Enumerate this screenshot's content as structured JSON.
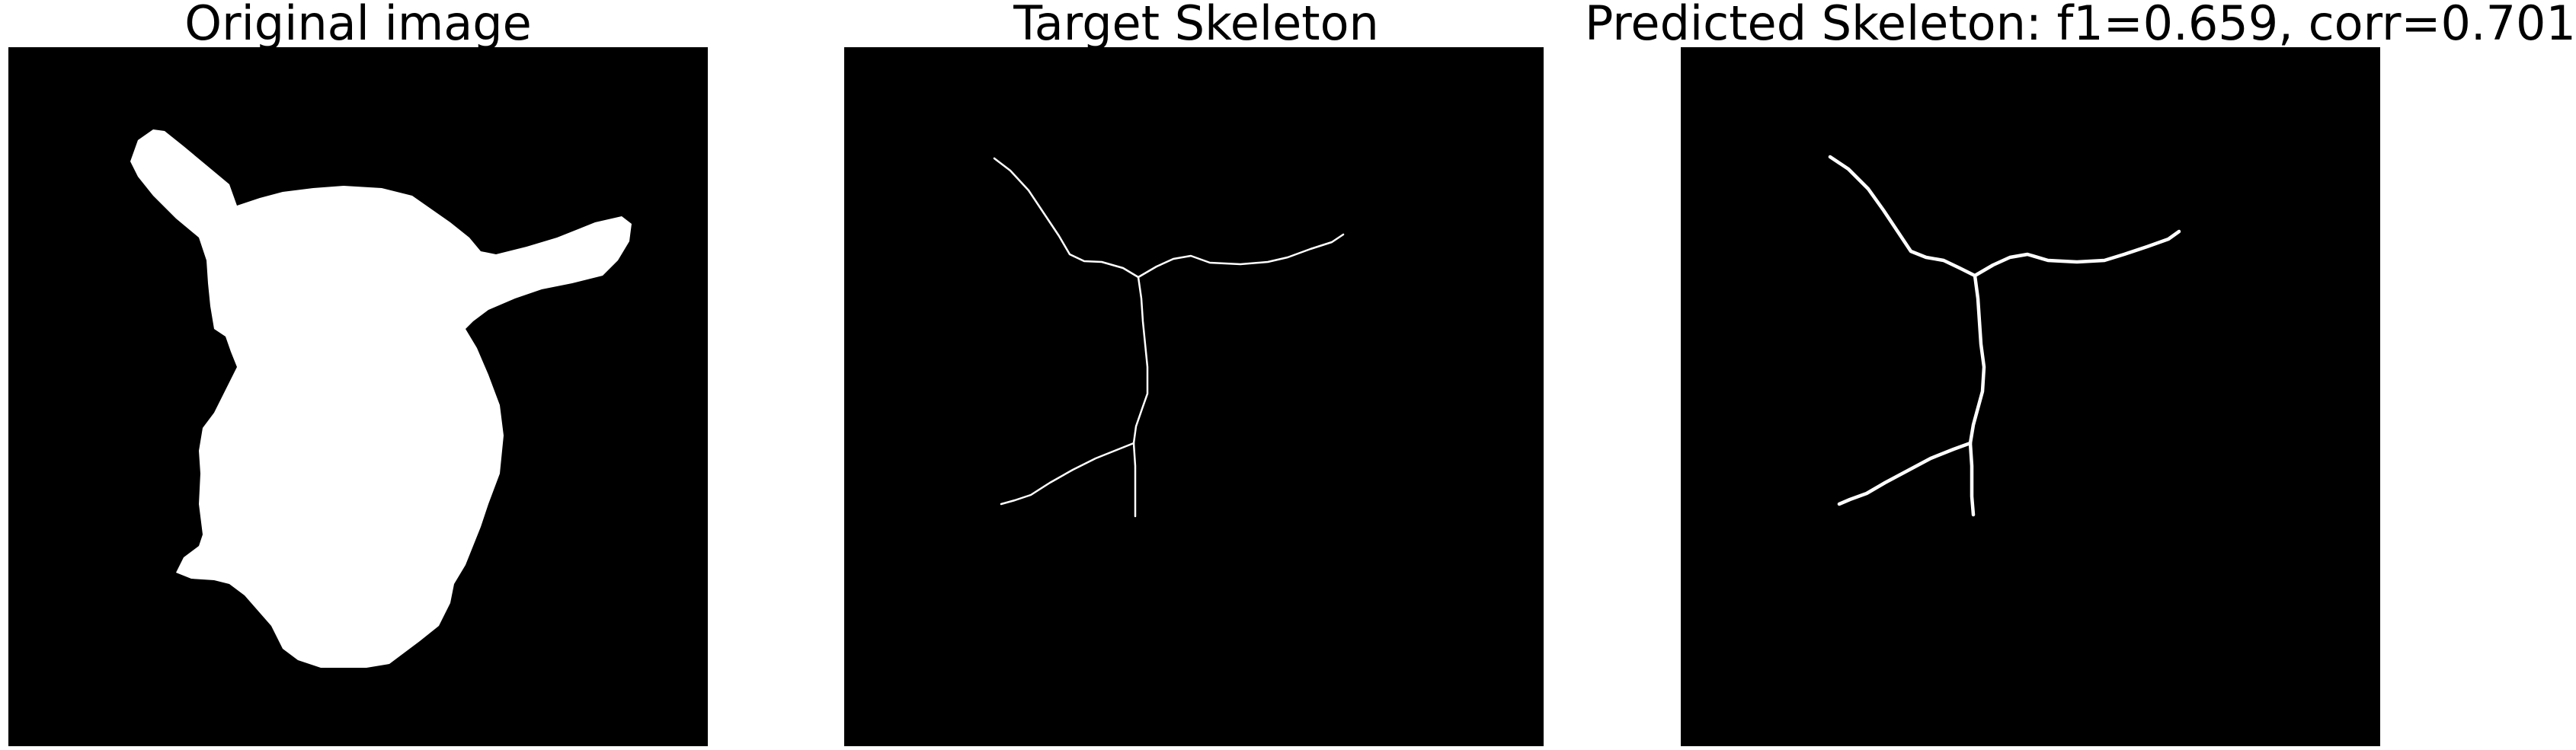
{
  "figure": {
    "panels": [
      {
        "id": "original",
        "title": "Original image"
      },
      {
        "id": "target",
        "title": "Target Skeleton"
      },
      {
        "id": "predicted",
        "title": "Predicted Skeleton: f1=0.659, corr=0.701"
      }
    ]
  },
  "colors": {
    "background": "#000000",
    "foreground": "#ffffff",
    "figure_bg": "#ffffff",
    "title_text": "#000000"
  },
  "metrics": {
    "f1": 0.659,
    "corr": 0.701
  }
}
